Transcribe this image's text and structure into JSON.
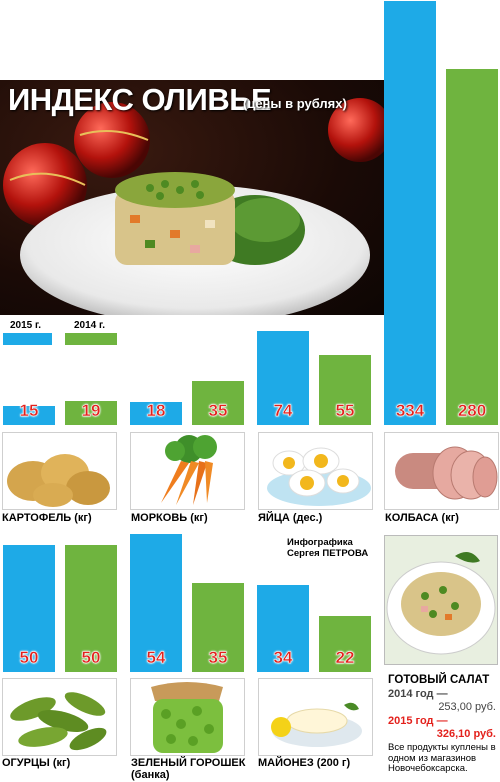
{
  "title": "ИНДЕКС ОЛИВЬЕ",
  "subtitle": "(цены в рублях)",
  "legend": {
    "y2015": "2015 г.",
    "y2014": "2014 г."
  },
  "colors": {
    "y2015": "#1eaae7",
    "y2014": "#6fb43f",
    "value_text": "#e3211c"
  },
  "chart_data": {
    "type": "bar",
    "title": "ИНДЕКС ОЛИВЬЕ (цены в рублях)",
    "categories": [
      "КАРТОФЕЛЬ (кг)",
      "МОРКОВЬ (кг)",
      "ЯЙЦА (дес.)",
      "КОЛБАСА (кг)",
      "ОГУРЦЫ (кг)",
      "ЗЕЛЕНЫЙ ГОРОШЕК (банка)",
      "МАЙОНЕЗ (200 г)"
    ],
    "series": [
      {
        "name": "2015 г.",
        "values": [
          15,
          18,
          74,
          334,
          50,
          54,
          34
        ]
      },
      {
        "name": "2014 г.",
        "values": [
          19,
          35,
          55,
          280,
          50,
          35,
          22
        ]
      }
    ]
  },
  "products_row1": [
    {
      "label": "КАРТОФЕЛЬ (кг)",
      "icon": "potato-icon"
    },
    {
      "label": "МОРКОВЬ (кг)",
      "icon": "carrot-icon"
    },
    {
      "label": "ЯЙЦА (дес.)",
      "icon": "egg-icon"
    },
    {
      "label": "КОЛБАСА (кг)",
      "icon": "sausage-icon"
    }
  ],
  "products_row2": [
    {
      "label": "ОГУРЦЫ (кг)",
      "icon": "pickle-icon"
    },
    {
      "label": "ЗЕЛЕНЫЙ ГОРОШЕК (банка)",
      "label_line1": "ЗЕЛЕНЫЙ ГОРОШЕК",
      "label_line2": "(банка)",
      "icon": "peas-jar-icon"
    },
    {
      "label": "МАЙОНЕЗ (200 г)",
      "icon": "mayonnaise-icon"
    }
  ],
  "credit": {
    "line1": "Инфографика",
    "line2": "Сергея ПЕТРОВА"
  },
  "summary": {
    "heading": "ГОТОВЫЙ САЛАТ",
    "y2014_label": "2014 год —",
    "y2014_value": "253,00 руб.",
    "y2015_label": "2015 год —",
    "y2015_value": "326,10 руб.",
    "note": "Все продукты куплены в одном из магазинов Новочебоксарска."
  }
}
